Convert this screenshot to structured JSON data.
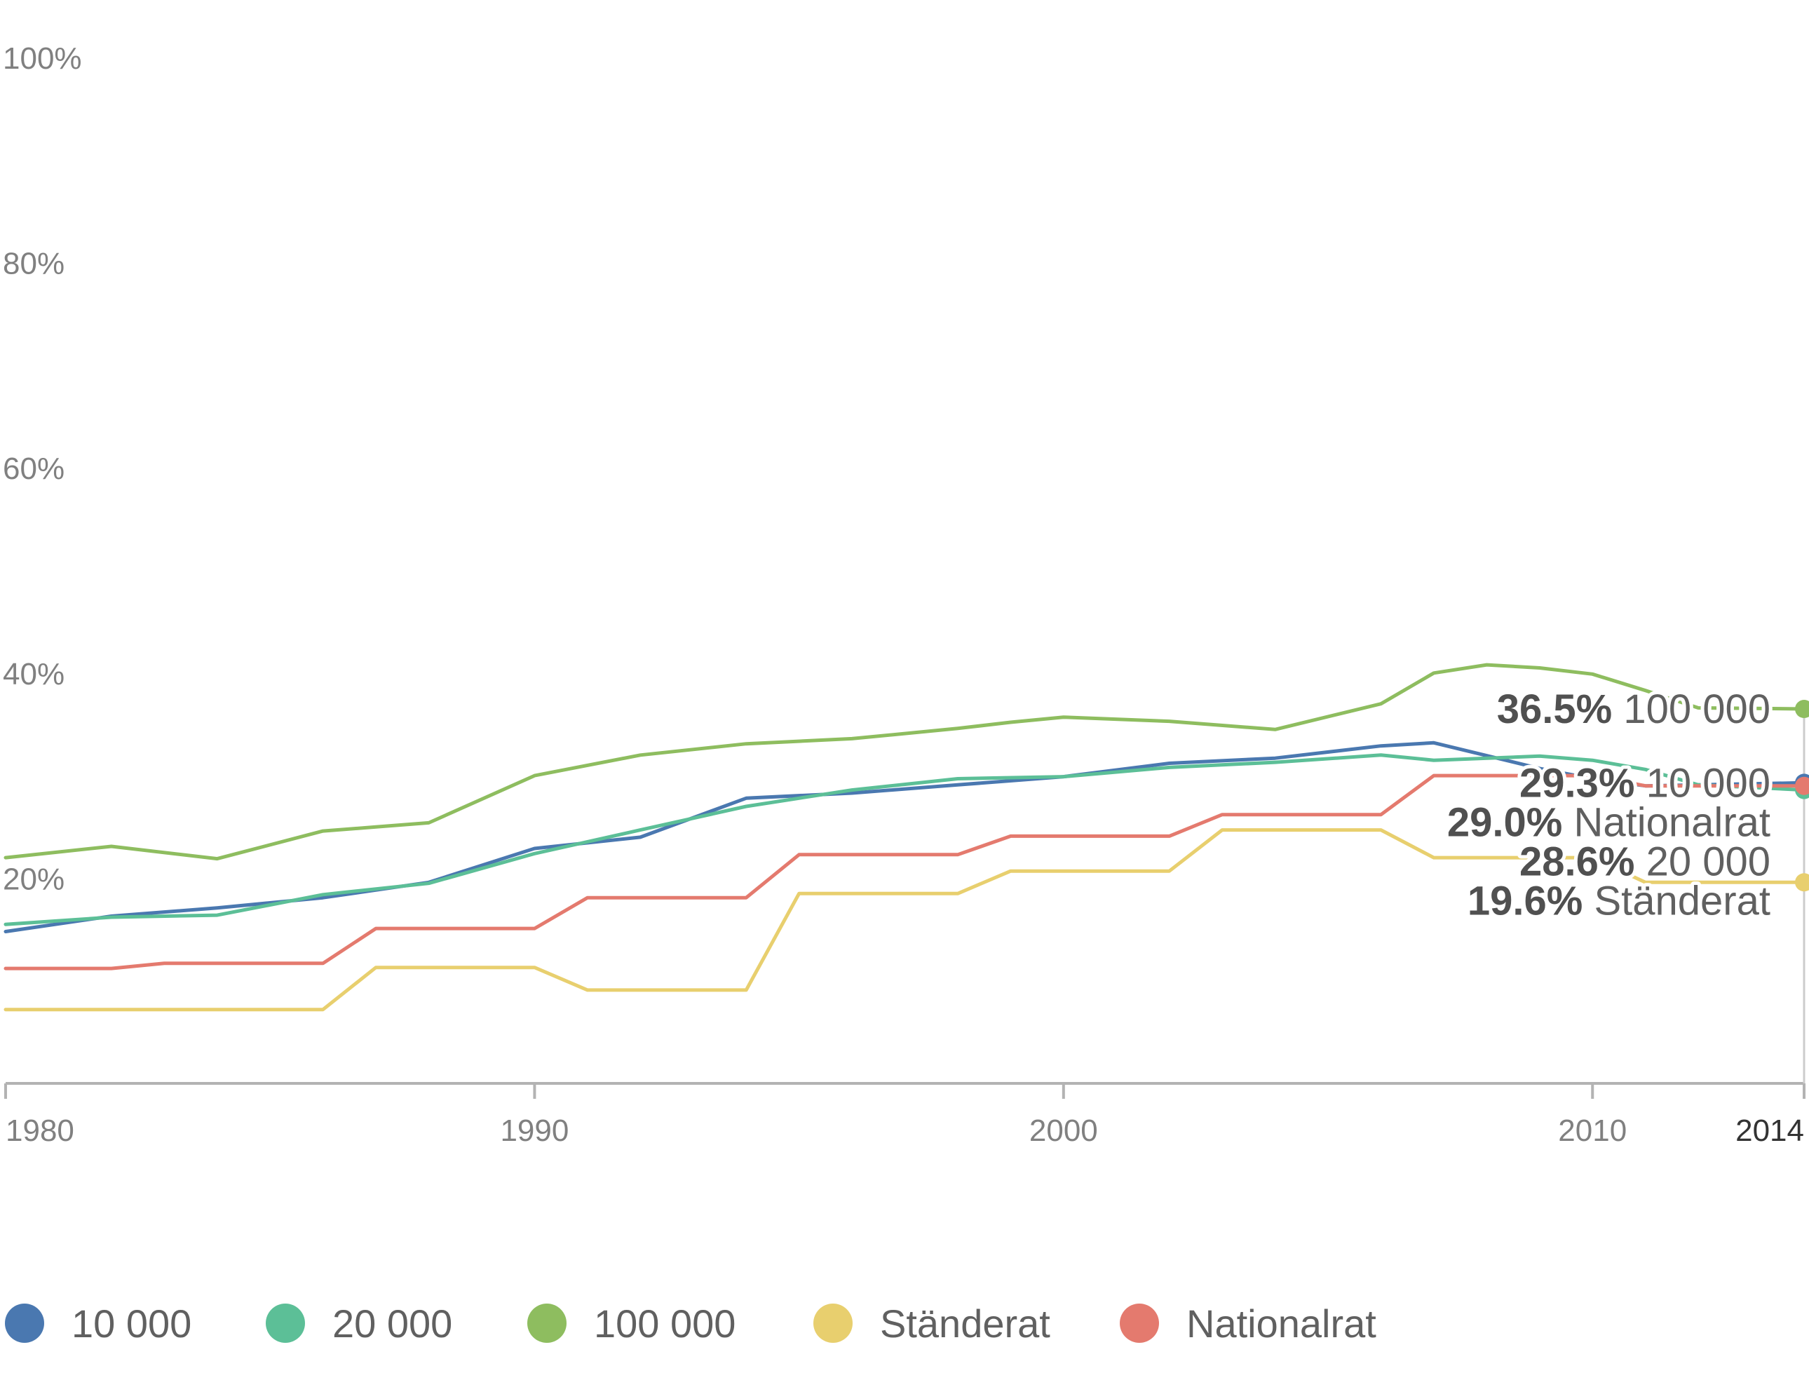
{
  "chart_data": {
    "type": "line",
    "title": "",
    "xlabel": "",
    "ylabel": "",
    "ylim": [
      0,
      100
    ],
    "xlim": [
      1980,
      2014
    ],
    "y_ticks": [
      {
        "value": 20,
        "label": "20%"
      },
      {
        "value": 40,
        "label": "40%"
      },
      {
        "value": 60,
        "label": "60%"
      },
      {
        "value": 80,
        "label": "80%"
      },
      {
        "value": 100,
        "label": "100%"
      }
    ],
    "x_ticks": [
      {
        "value": 1980,
        "label": "1980"
      },
      {
        "value": 1990,
        "label": "1990"
      },
      {
        "value": 2000,
        "label": "2000"
      },
      {
        "value": 2010,
        "label": "2010"
      },
      {
        "value": 2014,
        "label": "2014"
      }
    ],
    "grid": false,
    "legend_position": "bottom",
    "series": [
      {
        "name": "10 000",
        "color": "#4a78b0",
        "end_label": "29.3%",
        "x": [
          1980,
          1982,
          1984,
          1986,
          1988,
          1990,
          1992,
          1994,
          1996,
          1998,
          2000,
          2002,
          2004,
          2006,
          2007,
          2009,
          2010,
          2011,
          2012,
          2014
        ],
        "values": [
          14.8,
          16.3,
          17.1,
          18.1,
          19.6,
          22.9,
          24.0,
          27.8,
          28.3,
          29.1,
          29.9,
          31.2,
          31.7,
          32.9,
          33.2,
          30.7,
          29.7,
          29.0,
          29.1,
          29.3
        ]
      },
      {
        "name": "20 000",
        "color": "#5cbf97",
        "end_label": "28.6%",
        "x": [
          1980,
          1982,
          1984,
          1986,
          1988,
          1990,
          1992,
          1994,
          1996,
          1998,
          2000,
          2002,
          2004,
          2006,
          2007,
          2009,
          2010,
          2011,
          2012,
          2014
        ],
        "values": [
          15.5,
          16.2,
          16.4,
          18.4,
          19.5,
          22.4,
          24.7,
          27.0,
          28.6,
          29.7,
          29.9,
          30.8,
          31.3,
          32.0,
          31.5,
          31.9,
          31.5,
          30.6,
          29.1,
          28.6
        ]
      },
      {
        "name": "100 000",
        "color": "#8ebd5f",
        "end_label": "36.5%",
        "x": [
          1980,
          1982,
          1984,
          1986,
          1987,
          1988,
          1990,
          1992,
          1994,
          1996,
          1998,
          1999,
          2000,
          2002,
          2004,
          2006,
          2007,
          2008,
          2009,
          2010,
          2011,
          2012,
          2014
        ],
        "values": [
          22.0,
          23.1,
          21.9,
          24.6,
          25.0,
          25.4,
          30.0,
          32.0,
          33.1,
          33.6,
          34.6,
          35.2,
          35.7,
          35.3,
          34.5,
          37.0,
          40.0,
          40.8,
          40.5,
          39.9,
          38.3,
          36.6,
          36.5
        ]
      },
      {
        "name": "Ständerat",
        "color": "#e8cf6e",
        "end_label": "19.6%",
        "x": [
          1980,
          1986,
          1987,
          1990,
          1991,
          1994,
          1995,
          1998,
          1999,
          2002,
          2003,
          2006,
          2007,
          2010,
          2011,
          2014
        ],
        "values": [
          7.2,
          7.2,
          11.3,
          11.3,
          9.1,
          9.1,
          18.5,
          18.5,
          20.7,
          20.7,
          24.7,
          24.7,
          22.0,
          22.0,
          19.6,
          19.6
        ]
      },
      {
        "name": "Nationalrat",
        "color": "#e47a6e",
        "end_label": "29.0%",
        "x": [
          1980,
          1982,
          1983,
          1986,
          1987,
          1990,
          1991,
          1994,
          1995,
          1998,
          1999,
          2002,
          2003,
          2006,
          2007,
          2010,
          2011,
          2014
        ],
        "values": [
          11.2,
          11.2,
          11.7,
          11.7,
          15.1,
          15.1,
          18.1,
          18.1,
          22.3,
          22.3,
          24.1,
          24.1,
          26.2,
          26.2,
          30.0,
          30.0,
          29.0,
          29.0
        ]
      }
    ],
    "end_labels_order": [
      {
        "series": "100 000",
        "label": "100 000"
      },
      {
        "series": "10 000",
        "label": "10 000"
      },
      {
        "series": "Nationalrat",
        "label": "Nationalrat"
      },
      {
        "series": "20 000",
        "label": "20 000"
      },
      {
        "series": "Ständerat",
        "label": "Ständerat"
      }
    ]
  }
}
